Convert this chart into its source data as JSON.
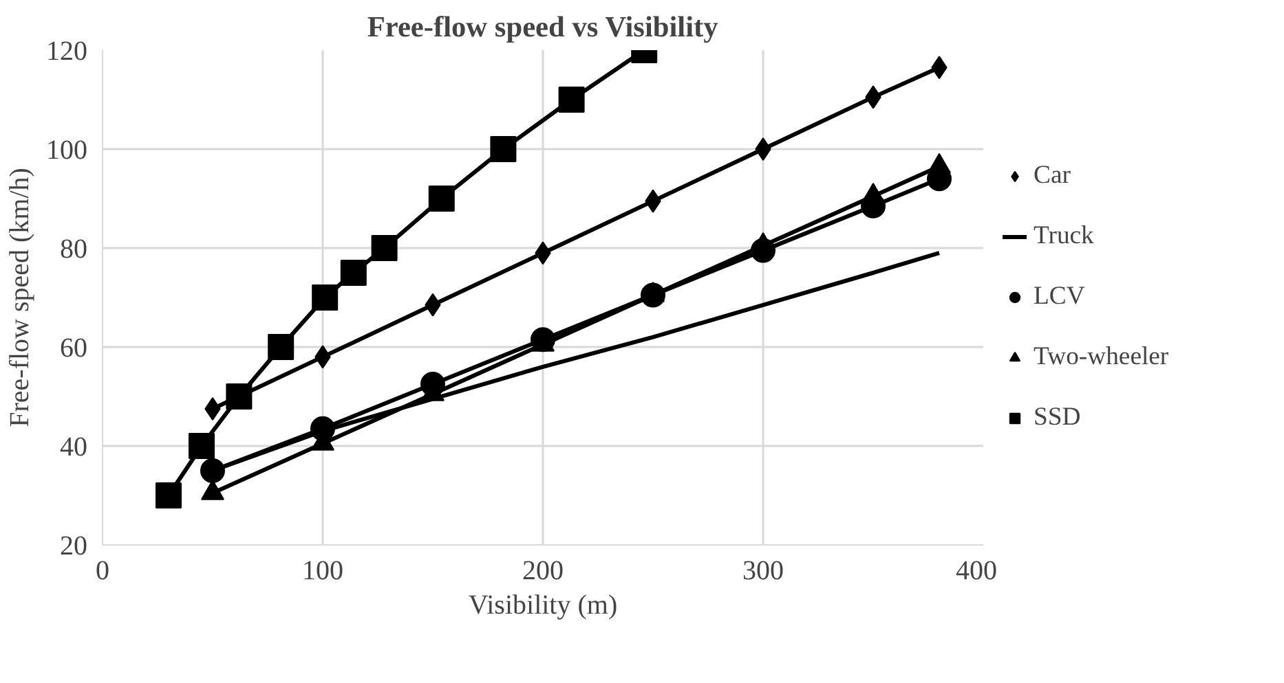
{
  "chart_data": {
    "type": "line",
    "title": "Free-flow speed vs Visibility",
    "xlabel": "Visibility (m)",
    "ylabel": "Free-flow speed (km/h)",
    "xlim": [
      0,
      400
    ],
    "xticks": [
      0,
      100,
      200,
      300,
      400
    ],
    "ylim": [
      20,
      120
    ],
    "yticks": [
      20,
      40,
      60,
      80,
      100,
      120
    ],
    "grid": true,
    "legend": "right",
    "series": [
      {
        "name": "Car",
        "color": "#000000",
        "marker": "diamond",
        "x": [
          50,
          100,
          150,
          200,
          250,
          300,
          350,
          380
        ],
        "values": [
          47.5,
          58,
          68.5,
          79,
          89.5,
          100,
          110.5,
          116.5
        ]
      },
      {
        "name": "Truck",
        "color": "#000000",
        "marker": "none",
        "x": [
          50,
          100,
          150,
          200,
          250,
          300,
          350,
          380
        ],
        "values": [
          35,
          43,
          49.5,
          56,
          62,
          68.5,
          75,
          79
        ]
      },
      {
        "name": "LCV",
        "color": "#000000",
        "marker": "circle",
        "x": [
          50,
          100,
          150,
          200,
          250,
          300,
          350,
          380
        ],
        "values": [
          35,
          43.5,
          52.5,
          61.5,
          70.5,
          79.5,
          88.5,
          94
        ]
      },
      {
        "name": "Two-wheeler",
        "color": "#000000",
        "marker": "triangle",
        "x": [
          50,
          100,
          150,
          200,
          250,
          300,
          350,
          380
        ],
        "values": [
          30.5,
          40.5,
          50.5,
          60.5,
          70.5,
          80.5,
          90.5,
          96.5
        ]
      },
      {
        "name": "SSD",
        "color": "#000000",
        "marker": "square",
        "x": [
          30,
          45,
          62,
          81,
          101,
          114,
          128,
          154,
          182,
          213,
          246
        ],
        "values": [
          30,
          40,
          50,
          60,
          70,
          75,
          80,
          90,
          100,
          110,
          120
        ]
      }
    ]
  }
}
